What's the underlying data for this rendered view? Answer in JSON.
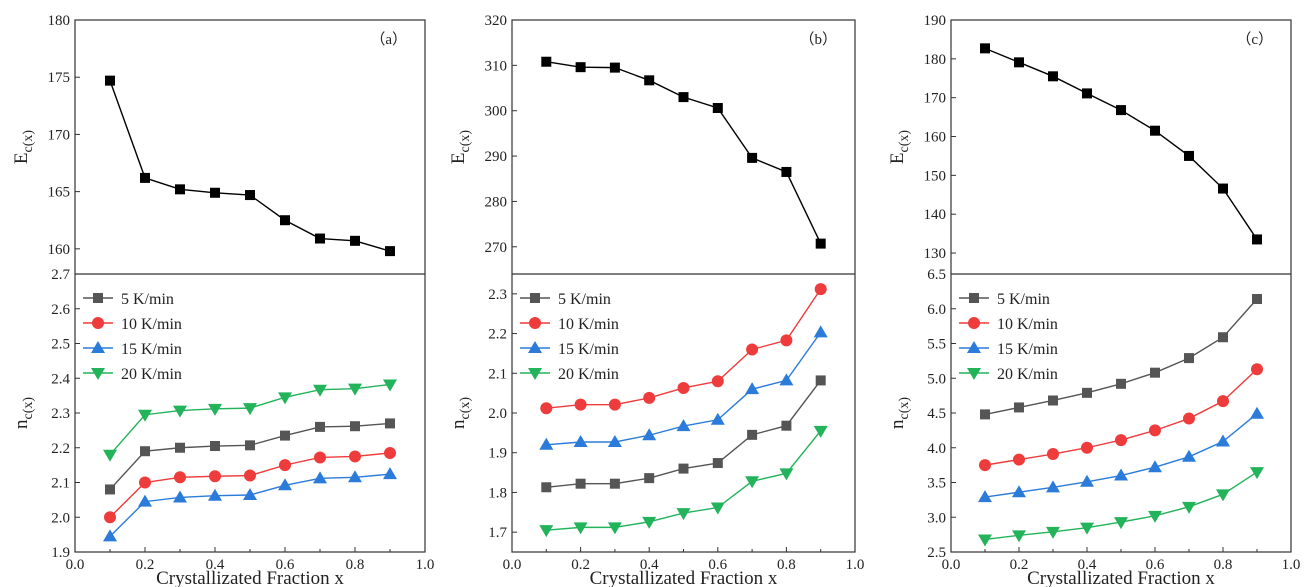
{
  "chart_data": [
    {
      "type": "line",
      "panel_label": "（a）",
      "x_axis": {
        "label": "Crystallizated Fraction x",
        "ticks": [
          "0.0",
          "0.2",
          "0.4",
          "0.6",
          "0.8",
          "1.0"
        ],
        "range": [
          0.0,
          1.0
        ]
      },
      "top": {
        "ylabel_main": "E",
        "ylabel_sub": "c(x)",
        "ylim": [
          157.8,
          180
        ],
        "yticks": [
          160,
          165,
          170,
          175,
          180
        ],
        "series": [
          {
            "color": "#000000",
            "marker": "square",
            "x": [
              0.1,
              0.2,
              0.3,
              0.4,
              0.5,
              0.6,
              0.7,
              0.8,
              0.9
            ],
            "y": [
              174.7,
              166.2,
              165.2,
              164.9,
              164.7,
              162.5,
              160.9,
              160.7,
              159.8
            ]
          }
        ]
      },
      "bottom": {
        "ylabel_main": "n",
        "ylabel_sub": "c(x)",
        "ylim": [
          1.9,
          2.7
        ],
        "yticks": [
          "1.9",
          "2.0",
          "2.1",
          "2.2",
          "2.3",
          "2.4",
          "2.5",
          "2.6",
          "2.7"
        ],
        "legend_position": "top-left",
        "series": [
          {
            "name": "5  K/min",
            "color": "#555555",
            "marker": "square",
            "x": [
              0.1,
              0.2,
              0.3,
              0.4,
              0.5,
              0.6,
              0.7,
              0.8,
              0.9
            ],
            "y": [
              2.08,
              2.19,
              2.2,
              2.205,
              2.207,
              2.235,
              2.26,
              2.262,
              2.27
            ]
          },
          {
            "name": "10 K/min",
            "color": "#ee3b3b",
            "marker": "circle",
            "x": [
              0.1,
              0.2,
              0.3,
              0.4,
              0.5,
              0.6,
              0.7,
              0.8,
              0.9
            ],
            "y": [
              2.0,
              2.1,
              2.115,
              2.118,
              2.12,
              2.15,
              2.172,
              2.175,
              2.185
            ]
          },
          {
            "name": "15 K/min",
            "color": "#2b7bdb",
            "marker": "triangle-up",
            "x": [
              0.1,
              0.2,
              0.3,
              0.4,
              0.5,
              0.6,
              0.7,
              0.8,
              0.9
            ],
            "y": [
              1.945,
              2.045,
              2.057,
              2.062,
              2.064,
              2.092,
              2.112,
              2.115,
              2.124
            ]
          },
          {
            "name": "20 K/min",
            "color": "#22b35b",
            "marker": "triangle-down",
            "x": [
              0.1,
              0.2,
              0.3,
              0.4,
              0.5,
              0.6,
              0.7,
              0.8,
              0.9
            ],
            "y": [
              2.18,
              2.295,
              2.307,
              2.312,
              2.314,
              2.345,
              2.367,
              2.37,
              2.382
            ]
          }
        ]
      }
    },
    {
      "type": "line",
      "panel_label": "（b）",
      "x_axis": {
        "label": "Crystallizated Fraction x",
        "ticks": [
          "0.0",
          "0.2",
          "0.4",
          "0.6",
          "0.8",
          "1.0"
        ],
        "range": [
          0.0,
          1.0
        ]
      },
      "top": {
        "ylabel_main": "E",
        "ylabel_sub": "c(x)",
        "ylim": [
          264,
          320
        ],
        "yticks": [
          270,
          280,
          290,
          300,
          310,
          320
        ],
        "series": [
          {
            "color": "#000000",
            "marker": "square",
            "x": [
              0.1,
              0.2,
              0.3,
              0.4,
              0.5,
              0.6,
              0.7,
              0.8,
              0.9
            ],
            "y": [
              310.8,
              309.6,
              309.5,
              306.7,
              303.0,
              300.6,
              289.6,
              286.5,
              270.7
            ]
          }
        ]
      },
      "bottom": {
        "ylabel_main": "n",
        "ylabel_sub": "c(x)",
        "ylim": [
          1.65,
          2.35
        ],
        "yticks": [
          "1.7",
          "1.8",
          "1.9",
          "2.0",
          "2.1",
          "2.2",
          "2.3"
        ],
        "legend_position": "top-left",
        "series": [
          {
            "name": "5  K/min",
            "color": "#555555",
            "marker": "square",
            "x": [
              0.1,
              0.2,
              0.3,
              0.4,
              0.5,
              0.6,
              0.7,
              0.8,
              0.9
            ],
            "y": [
              1.813,
              1.822,
              1.822,
              1.836,
              1.86,
              1.874,
              1.945,
              1.968,
              2.082
            ]
          },
          {
            "name": "10 K/min",
            "color": "#ee3b3b",
            "marker": "circle",
            "x": [
              0.1,
              0.2,
              0.3,
              0.4,
              0.5,
              0.6,
              0.7,
              0.8,
              0.9
            ],
            "y": [
              2.012,
              2.021,
              2.021,
              2.038,
              2.063,
              2.08,
              2.16,
              2.183,
              2.312
            ]
          },
          {
            "name": "15 K/min",
            "color": "#2b7bdb",
            "marker": "triangle-up",
            "x": [
              0.1,
              0.2,
              0.3,
              0.4,
              0.5,
              0.6,
              0.7,
              0.8,
              0.9
            ],
            "y": [
              1.92,
              1.927,
              1.927,
              1.944,
              1.967,
              1.983,
              2.06,
              2.082,
              2.203
            ]
          },
          {
            "name": "20 K/min",
            "color": "#22b35b",
            "marker": "triangle-down",
            "x": [
              0.1,
              0.2,
              0.3,
              0.4,
              0.5,
              0.6,
              0.7,
              0.8,
              0.9
            ],
            "y": [
              1.705,
              1.712,
              1.712,
              1.726,
              1.748,
              1.762,
              1.828,
              1.848,
              1.955
            ]
          }
        ]
      }
    },
    {
      "type": "line",
      "panel_label": "（c）",
      "x_axis": {
        "label": "Crystallizated Fraction x",
        "ticks": [
          "0.0",
          "0.2",
          "0.4",
          "0.6",
          "0.8",
          "1.0"
        ],
        "range": [
          0.0,
          1.0
        ]
      },
      "top": {
        "ylabel_main": "E",
        "ylabel_sub": "c(x)",
        "ylim": [
          124.6,
          190
        ],
        "yticks": [
          130,
          140,
          150,
          160,
          170,
          180,
          190
        ],
        "series": [
          {
            "color": "#000000",
            "marker": "square",
            "x": [
              0.1,
              0.2,
              0.3,
              0.4,
              0.5,
              0.6,
              0.7,
              0.8,
              0.9
            ],
            "y": [
              182.7,
              179.1,
              175.5,
              171.1,
              166.8,
              161.5,
              155.0,
              146.6,
              133.5
            ]
          }
        ]
      },
      "bottom": {
        "ylabel_main": "n",
        "ylabel_sub": "c(x)",
        "ylim": [
          2.5,
          6.5
        ],
        "yticks": [
          "2.5",
          "3.0",
          "3.5",
          "4.0",
          "4.5",
          "5.0",
          "5.5",
          "6.0",
          "6.5"
        ],
        "legend_position": "top-left",
        "series": [
          {
            "name": "5  K/min",
            "color": "#555555",
            "marker": "square",
            "x": [
              0.1,
              0.2,
              0.3,
              0.4,
              0.5,
              0.6,
              0.7,
              0.8,
              0.9
            ],
            "y": [
              4.48,
              4.58,
              4.68,
              4.79,
              4.92,
              5.08,
              5.29,
              5.59,
              6.14
            ]
          },
          {
            "name": "10 K/min",
            "color": "#ee3b3b",
            "marker": "circle",
            "x": [
              0.1,
              0.2,
              0.3,
              0.4,
              0.5,
              0.6,
              0.7,
              0.8,
              0.9
            ],
            "y": [
              3.75,
              3.83,
              3.91,
              4.0,
              4.11,
              4.25,
              4.42,
              4.67,
              5.13
            ]
          },
          {
            "name": "15 K/min",
            "color": "#2b7bdb",
            "marker": "triangle-up",
            "x": [
              0.1,
              0.2,
              0.3,
              0.4,
              0.5,
              0.6,
              0.7,
              0.8,
              0.9
            ],
            "y": [
              3.29,
              3.36,
              3.43,
              3.51,
              3.6,
              3.72,
              3.87,
              4.09,
              4.49
            ]
          },
          {
            "name": "20 K/min",
            "color": "#22b35b",
            "marker": "triangle-down",
            "x": [
              0.1,
              0.2,
              0.3,
              0.4,
              0.5,
              0.6,
              0.7,
              0.8,
              0.9
            ],
            "y": [
              2.68,
              2.74,
              2.79,
              2.85,
              2.93,
              3.02,
              3.15,
              3.33,
              3.65
            ]
          }
        ]
      }
    }
  ]
}
